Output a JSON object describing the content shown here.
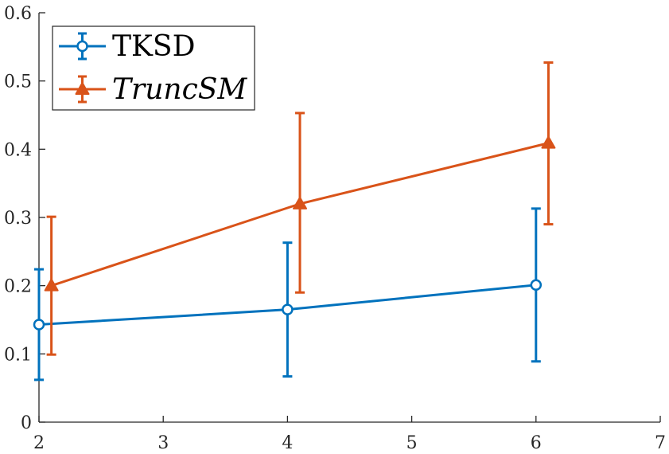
{
  "chart_data": {
    "type": "line",
    "title": "",
    "xlabel": "",
    "ylabel": "",
    "xlim": [
      2,
      7
    ],
    "ylim": [
      0,
      0.6
    ],
    "xticks": [
      2,
      3,
      4,
      5,
      6,
      7
    ],
    "yticks": [
      0,
      0.1,
      0.2,
      0.3,
      0.4,
      0.5,
      0.6
    ],
    "xtick_labels": [
      "2",
      "3",
      "4",
      "5",
      "6",
      "7"
    ],
    "ytick_labels": [
      "0",
      "0.1",
      "0.2",
      "0.3",
      "0.4",
      "0.5",
      "0.6"
    ],
    "grid": false,
    "legend_position": "top-left",
    "series": [
      {
        "name": "TKSD",
        "color": "#0072BD",
        "marker": "circle",
        "x": [
          2,
          4,
          6
        ],
        "y": [
          0.143,
          0.165,
          0.201
        ],
        "err_low": [
          0.062,
          0.067,
          0.089
        ],
        "err_high": [
          0.224,
          0.263,
          0.313
        ]
      },
      {
        "name": "TruncSM",
        "color": "#D95319",
        "marker": "triangle",
        "italic": true,
        "x": [
          2.1,
          4.1,
          6.1
        ],
        "y": [
          0.2,
          0.32,
          0.409
        ],
        "err_low": [
          0.099,
          0.19,
          0.29
        ],
        "err_high": [
          0.301,
          0.453,
          0.527
        ]
      }
    ]
  }
}
